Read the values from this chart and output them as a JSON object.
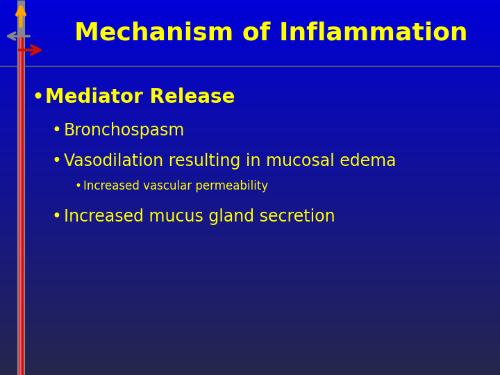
{
  "title": "Mechanism of Inflammation",
  "title_color": "#FFFF00",
  "title_fontsize": 26,
  "text_color": "#FFFF00",
  "bullet1": "Mediator Release",
  "bullet1_fontsize": 20,
  "bullet2a": "Bronchospasm",
  "bullet2b": "Vasodilation resulting in mucosal edema",
  "bullet2_fontsize": 17,
  "bullet3": "Increased vascular permeability",
  "bullet3_fontsize": 12,
  "bullet4": "Increased mucus gland secretion",
  "bullet4_fontsize": 17,
  "bg_colors": [
    "#3333aa",
    "#0000bb",
    "#000099",
    "#1a1a2a",
    "#2a2a3a"
  ],
  "divider_color": "#888888",
  "orange_arrow_color": "#FFA500",
  "gray_bar_color": "#888888",
  "red_bar_color": "#cc2200",
  "pink_overlay_color": "#ff6688"
}
